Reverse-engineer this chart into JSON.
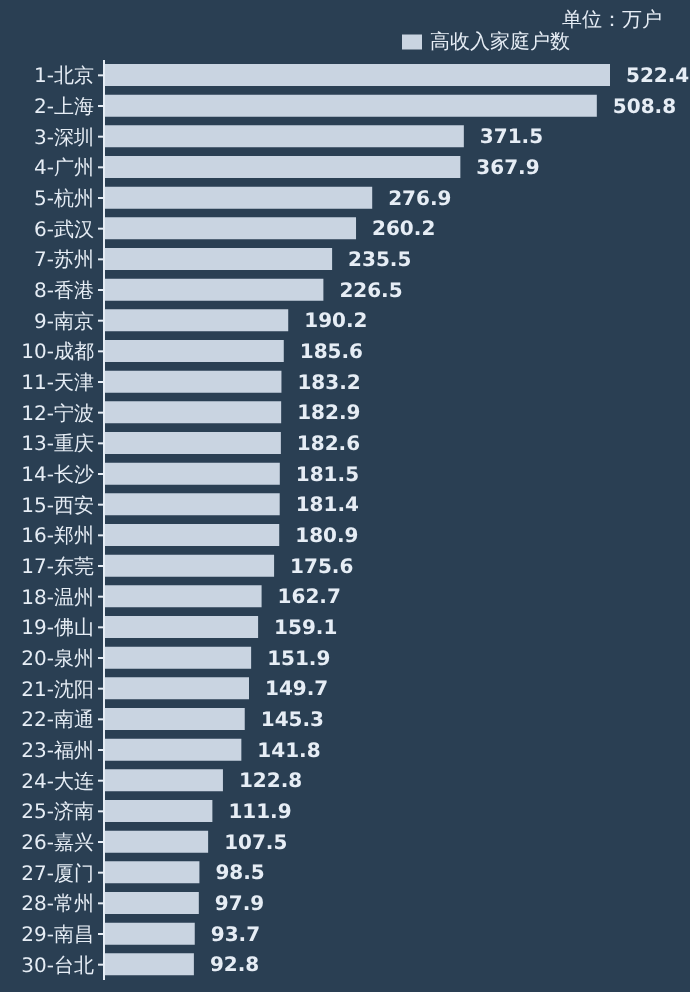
{
  "chart_data": {
    "type": "bar",
    "orientation": "horizontal",
    "annotations": [
      "单位：万户"
    ],
    "categories": [
      "1-北京",
      "2-上海",
      "3-深圳",
      "4-广州",
      "5-杭州",
      "6-武汉",
      "7-苏州",
      "8-香港",
      "9-南京",
      "10-成都",
      "11-天津",
      "12-宁波",
      "13-重庆",
      "14-长沙",
      "15-西安",
      "16-郑州",
      "17-东莞",
      "18-温州",
      "19-佛山",
      "20-泉州",
      "21-沈阳",
      "22-南通",
      "23-福州",
      "24-大连",
      "25-济南",
      "26-嘉兴",
      "27-厦门",
      "28-常州",
      "29-南昌",
      "30-台北"
    ],
    "series": [
      {
        "name": "高收入家庭户数",
        "color": "#c9d4e1",
        "values": [
          522.4,
          508.8,
          371.5,
          367.9,
          276.9,
          260.2,
          235.5,
          226.5,
          190.2,
          185.6,
          183.2,
          182.9,
          182.6,
          181.5,
          181.4,
          180.9,
          175.6,
          162.7,
          159.1,
          151.9,
          149.7,
          145.3,
          141.8,
          122.8,
          111.9,
          107.5,
          98.5,
          97.9,
          93.7,
          92.8
        ]
      }
    ],
    "data_labels": true,
    "legend": "top right",
    "grid": false
  }
}
